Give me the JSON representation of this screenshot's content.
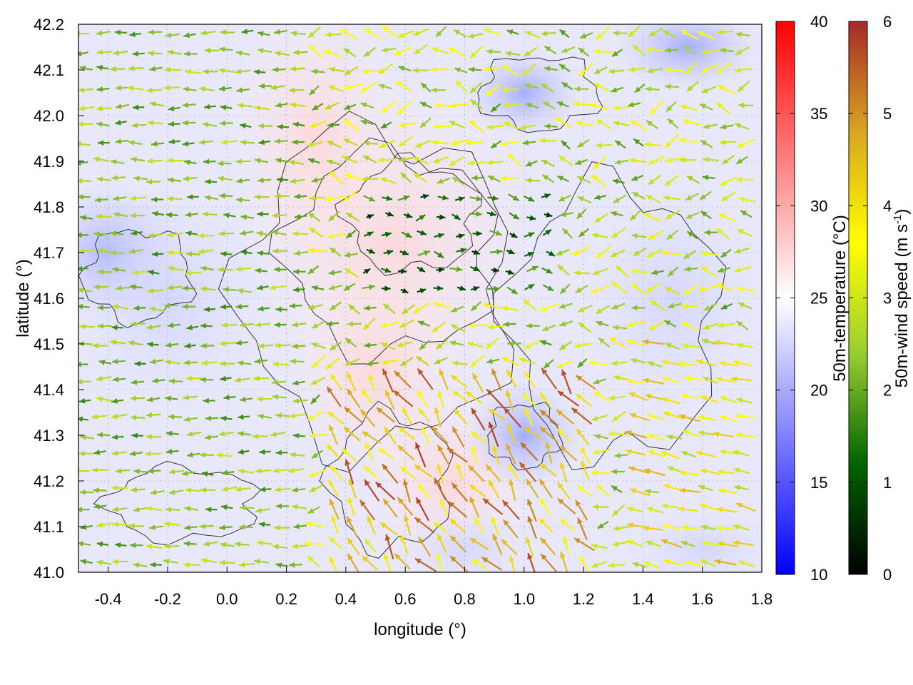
{
  "chart_data": {
    "type": "heatmap",
    "title": "",
    "xlabel": "longitude (°)",
    "ylabel": "latitude (°)",
    "xlim": [
      -0.5,
      1.8
    ],
    "ylim": [
      41.0,
      42.2
    ],
    "x_ticks": [
      "-0.4",
      "-0.2",
      "0.0",
      "0.2",
      "0.4",
      "0.6",
      "0.8",
      "1.0",
      "1.2",
      "1.4",
      "1.6",
      "1.8"
    ],
    "y_ticks": [
      "41.0",
      "41.1",
      "41.2",
      "41.3",
      "41.4",
      "41.5",
      "41.6",
      "41.7",
      "41.8",
      "41.9",
      "42.0",
      "42.1",
      "42.2"
    ],
    "grid": true,
    "layers": [
      {
        "kind": "filled-map",
        "variable": "50m-temperature"
      },
      {
        "kind": "contours",
        "color": "#333333"
      },
      {
        "kind": "vector-field",
        "variable": "50m-wind speed"
      }
    ],
    "colorbars": [
      {
        "label": "50m-temperature (°C)",
        "range": [
          10,
          40
        ],
        "ticks": [
          "10",
          "15",
          "20",
          "25",
          "30",
          "35",
          "40"
        ],
        "colors": [
          "#0000ff",
          "#ffffff",
          "#ff0000"
        ]
      },
      {
        "label_main": "50m-wind speed (m s",
        "label_sup": "-1",
        "label_end": ")",
        "range": [
          0,
          6
        ],
        "ticks": [
          "0",
          "1",
          "2",
          "3",
          "4",
          "5",
          "6"
        ],
        "colors": [
          "#000000",
          "#006400",
          "#9acd32",
          "#ffff00",
          "#daa520",
          "#a52a2a"
        ]
      }
    ]
  }
}
